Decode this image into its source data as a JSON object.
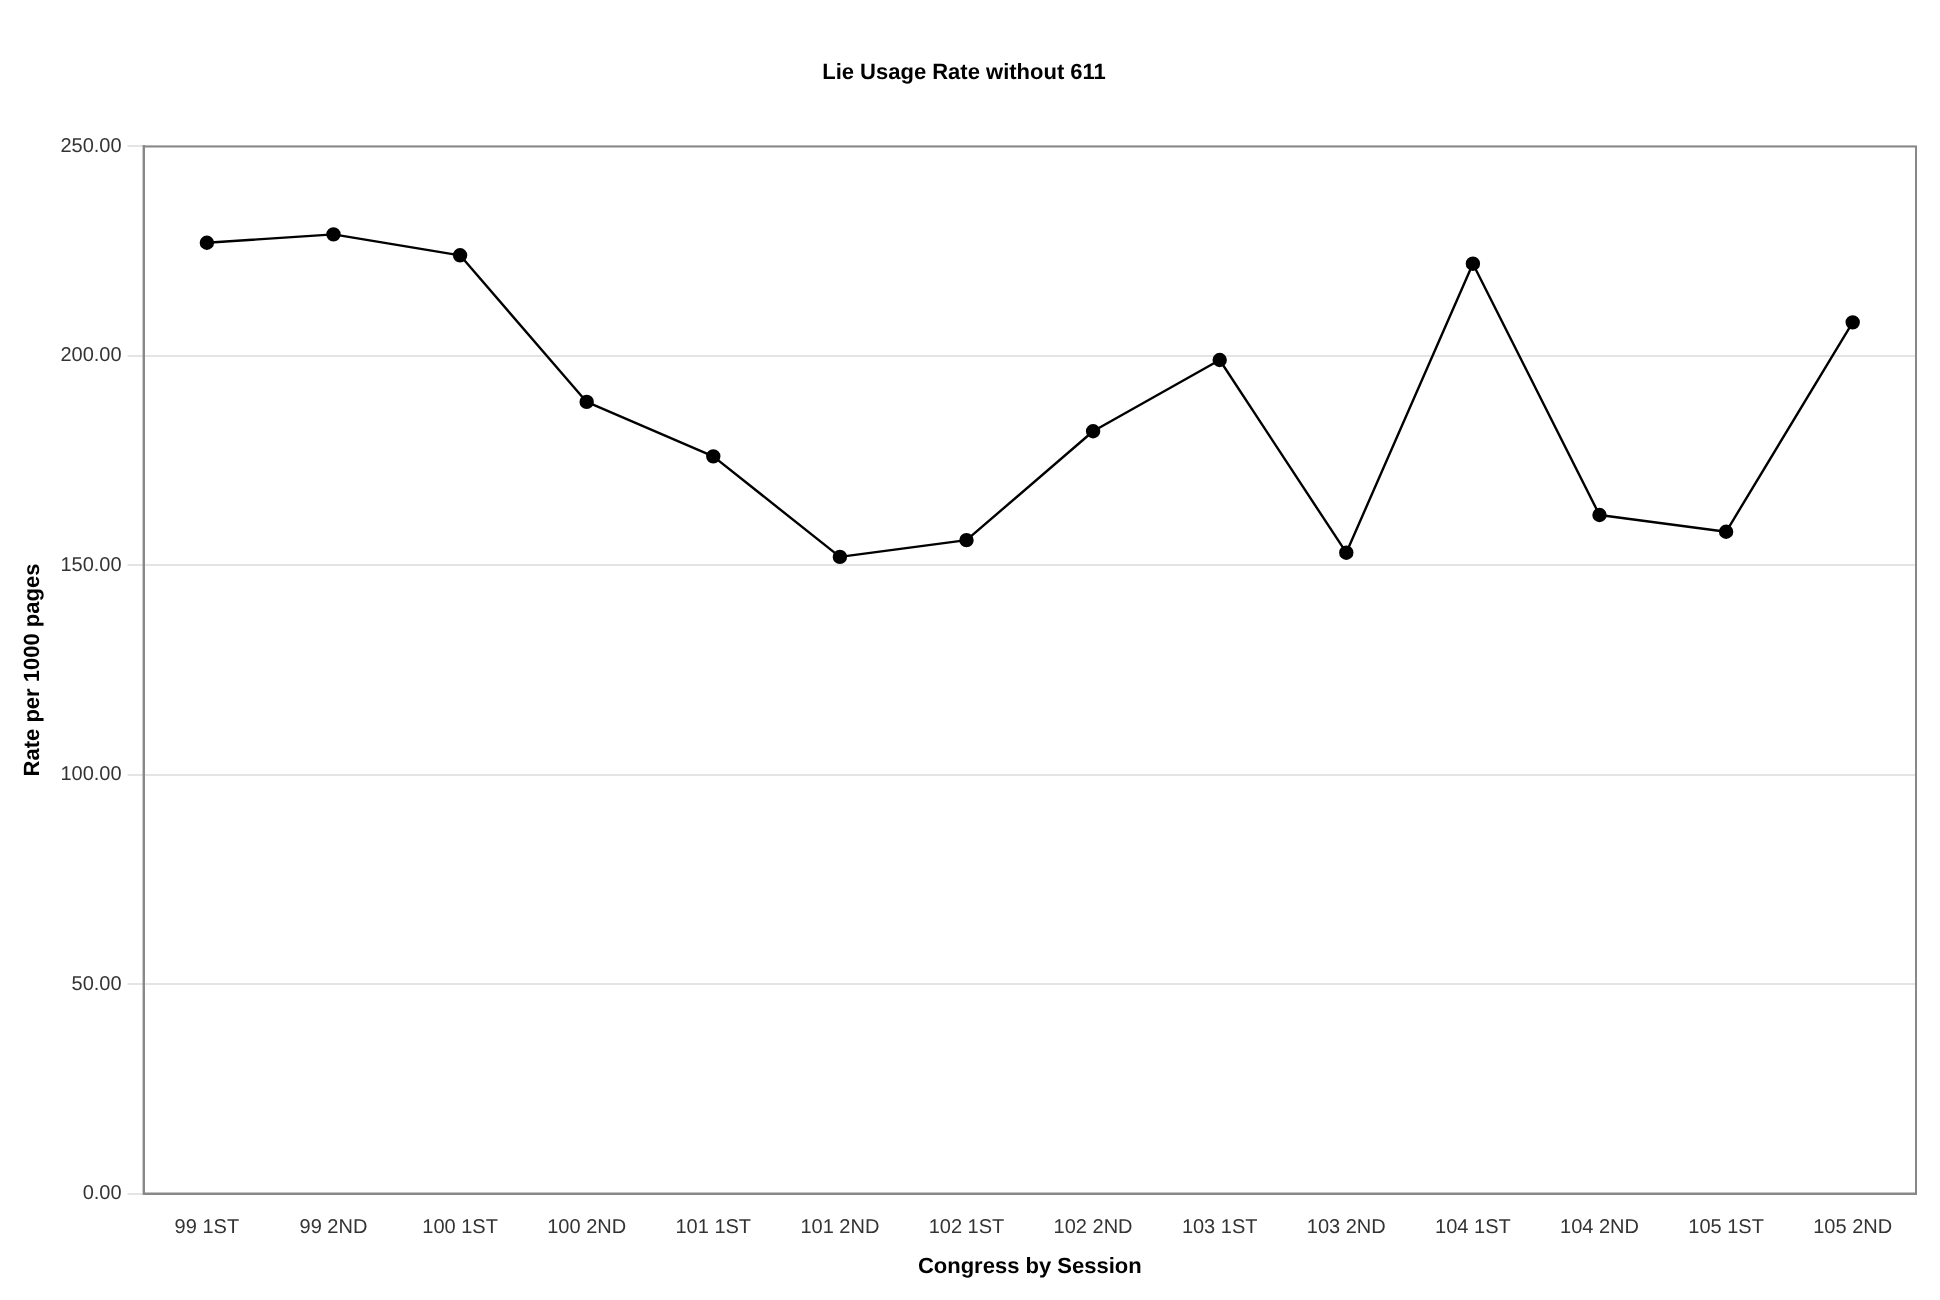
{
  "chart_data": {
    "type": "line",
    "title": "Lie Usage Rate without 611",
    "xlabel": "Congress by Session",
    "ylabel": "Rate per 1000 pages",
    "categories": [
      "99 1ST",
      "99 2ND",
      "100 1ST",
      "100 2ND",
      "101 1ST",
      "101 2ND",
      "102 1ST",
      "102 2ND",
      "103 1ST",
      "103 2ND",
      "104 1ST",
      "104 2ND",
      "105 1ST",
      "105 2ND"
    ],
    "series": [
      {
        "color": "#000000",
        "values": [
          227,
          229,
          224,
          189,
          176,
          152,
          156,
          182,
          199,
          153,
          222,
          162,
          158,
          208
        ]
      }
    ],
    "ylim": [
      0,
      250
    ],
    "yticks": [
      {
        "value": 0,
        "label": "0.00"
      },
      {
        "value": 50,
        "label": "50.00"
      },
      {
        "value": 100,
        "label": "100.00"
      },
      {
        "value": 150,
        "label": "150.00"
      },
      {
        "value": 200,
        "label": "200.00"
      },
      {
        "value": 250,
        "label": "250.00"
      }
    ],
    "grid": "y",
    "legend": false,
    "marker": "circle",
    "line_style": "solid"
  }
}
